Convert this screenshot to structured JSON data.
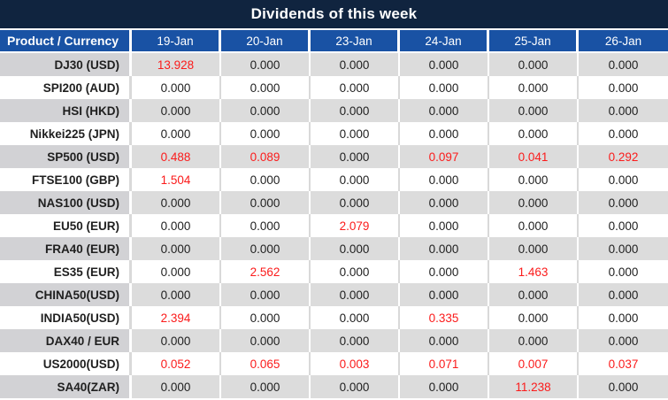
{
  "title": "Dividends of this week",
  "table": {
    "product_header": "Product / Currency",
    "date_headers": [
      "19-Jan",
      "20-Jan",
      "23-Jan",
      "24-Jan",
      "25-Jan",
      "26-Jan"
    ],
    "rows": [
      {
        "product": "DJ30 (USD)",
        "values": [
          "13.928",
          "0.000",
          "0.000",
          "0.000",
          "0.000",
          "0.000"
        ]
      },
      {
        "product": "SPI200 (AUD)",
        "values": [
          "0.000",
          "0.000",
          "0.000",
          "0.000",
          "0.000",
          "0.000"
        ]
      },
      {
        "product": "HSI (HKD)",
        "values": [
          "0.000",
          "0.000",
          "0.000",
          "0.000",
          "0.000",
          "0.000"
        ]
      },
      {
        "product": "Nikkei225 (JPN)",
        "values": [
          "0.000",
          "0.000",
          "0.000",
          "0.000",
          "0.000",
          "0.000"
        ]
      },
      {
        "product": "SP500 (USD)",
        "values": [
          "0.488",
          "0.089",
          "0.000",
          "0.097",
          "0.041",
          "0.292"
        ]
      },
      {
        "product": "FTSE100 (GBP)",
        "values": [
          "1.504",
          "0.000",
          "0.000",
          "0.000",
          "0.000",
          "0.000"
        ]
      },
      {
        "product": "NAS100 (USD)",
        "values": [
          "0.000",
          "0.000",
          "0.000",
          "0.000",
          "0.000",
          "0.000"
        ]
      },
      {
        "product": "EU50 (EUR)",
        "values": [
          "0.000",
          "0.000",
          "2.079",
          "0.000",
          "0.000",
          "0.000"
        ]
      },
      {
        "product": "FRA40 (EUR)",
        "values": [
          "0.000",
          "0.000",
          "0.000",
          "0.000",
          "0.000",
          "0.000"
        ]
      },
      {
        "product": "ES35 (EUR)",
        "values": [
          "0.000",
          "2.562",
          "0.000",
          "0.000",
          "1.463",
          "0.000"
        ]
      },
      {
        "product": "CHINA50(USD)",
        "values": [
          "0.000",
          "0.000",
          "0.000",
          "0.000",
          "0.000",
          "0.000"
        ]
      },
      {
        "product": "INDIA50(USD)",
        "values": [
          "2.394",
          "0.000",
          "0.000",
          "0.335",
          "0.000",
          "0.000"
        ]
      },
      {
        "product": "DAX40 / EUR",
        "values": [
          "0.000",
          "0.000",
          "0.000",
          "0.000",
          "0.000",
          "0.000"
        ]
      },
      {
        "product": "US2000(USD)",
        "values": [
          "0.052",
          "0.065",
          "0.003",
          "0.071",
          "0.007",
          "0.037"
        ]
      },
      {
        "product": "SA40(ZAR)",
        "values": [
          "0.000",
          "0.000",
          "0.000",
          "0.000",
          "11.238",
          "0.000"
        ]
      }
    ]
  },
  "colors": {
    "title_bg": "#10243F",
    "header_bg": "#1952A4",
    "row_alt_bg": "#DCDCDC",
    "product_alt_bg": "#D2D2D5",
    "highlight_red": "#FB1B1B",
    "text_dark": "#1F1F1F"
  }
}
